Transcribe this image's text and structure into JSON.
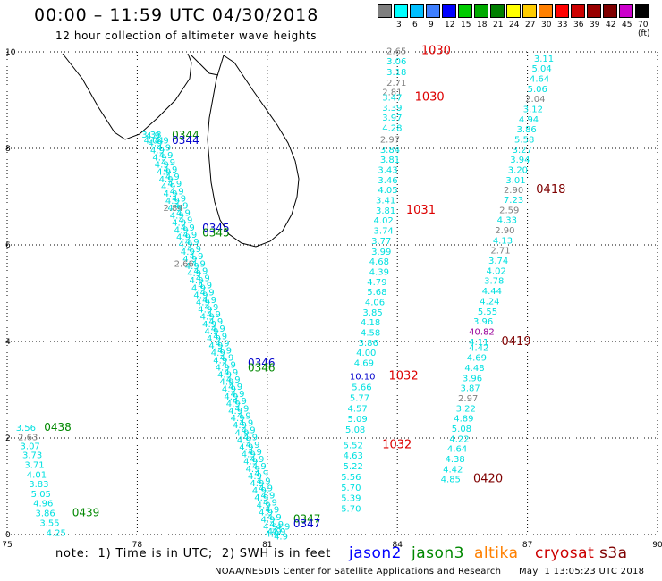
{
  "title": "00:00 – 11:59 UTC 04/30/2018",
  "subtitle": "12 hour collection of altimeter wave heights",
  "color_scale": {
    "labels": [
      "",
      "3",
      "6",
      "9",
      "12",
      "15",
      "18",
      "21",
      "24",
      "27",
      "30",
      "33",
      "36",
      "39",
      "42",
      "45",
      "70 (ft)"
    ],
    "colors": [
      "#7f7f7f",
      "#00ffff",
      "#00bfff",
      "#3f7fff",
      "#0000ff",
      "#00cc00",
      "#00aa00",
      "#007f00",
      "#ffff00",
      "#ffcc00",
      "#ff8000",
      "#ff0000",
      "#cc0000",
      "#990000",
      "#7f0000",
      "#cc00cc",
      "#000000"
    ]
  },
  "footer": {
    "note": "note:  1) Time is in UTC;  2) SWH is in feet",
    "legend": [
      {
        "label": "jason2",
        "color": "#0000ff"
      },
      {
        "label": "jason3",
        "color": "#008800"
      },
      {
        "label": "altika",
        "color": "#ff8000"
      },
      {
        "label": "cryosat",
        "color": "#cc0000"
      },
      {
        "label": "s3a",
        "color": "#7f0000"
      }
    ],
    "credit": "NOAA/NESDIS Center for Satellite Applications and Research",
    "timestamp": "May  1 13:05:23 UTC 2018"
  },
  "colors": {
    "cyan": "#00e0e0",
    "gray": "#7f7f7f",
    "blue": "#0000cc",
    "green": "#008800",
    "red": "#dd0000",
    "maroon": "#7f0000",
    "purple": "#990099"
  },
  "chart_data": {
    "type": "scatter",
    "xlim": [
      75,
      90
    ],
    "ylim": [
      0,
      10
    ],
    "xticks": [
      75,
      78,
      81,
      84,
      87,
      90
    ],
    "yticks": [
      0,
      2,
      4,
      6,
      8,
      10
    ],
    "grid": true,
    "series": [
      {
        "color": "cyan",
        "x": [
          78.2,
          78.25,
          78.3,
          78.35,
          78.4,
          78.45,
          78.5,
          78.55,
          78.6,
          78.65,
          78.7,
          78.75,
          78.8,
          78.85,
          78.9,
          78.95,
          79.0,
          79.05,
          79.1,
          79.15,
          79.2,
          79.25,
          79.3,
          79.35,
          79.4,
          79.45,
          79.5,
          79.55,
          79.6,
          79.65,
          79.7,
          79.75,
          79.8,
          79.85,
          79.9,
          79.95,
          80.0,
          80.05,
          80.1,
          80.15,
          80.2,
          80.25,
          80.3,
          80.35,
          80.4,
          80.45,
          80.5,
          80.55,
          80.6,
          80.65,
          80.7,
          80.75,
          80.8,
          80.85,
          80.9,
          80.95,
          81.0
        ],
        "y": [
          8.2,
          8.05,
          7.9,
          7.75,
          7.6,
          7.45,
          7.3,
          7.15,
          7.0,
          6.85,
          6.7,
          6.55,
          6.4,
          6.25,
          6.1,
          5.95,
          5.8,
          5.65,
          5.5,
          5.35,
          5.2,
          5.05,
          4.9,
          4.75,
          4.6,
          4.45,
          4.3,
          4.15,
          4.0,
          3.85,
          3.7,
          3.55,
          3.4,
          3.25,
          3.1,
          2.95,
          2.8,
          2.65,
          2.5,
          2.35,
          2.2,
          2.05,
          1.9,
          1.75,
          1.6,
          1.45,
          1.3,
          1.15,
          1.0,
          0.85,
          0.7,
          0.55,
          0.4,
          0.25,
          0.1,
          -0.05,
          0.0
        ]
      },
      {
        "color": "cyan",
        "x": [
          78.4,
          78.45,
          78.5,
          78.55,
          78.6,
          78.65,
          78.7,
          78.75,
          78.8,
          78.85,
          78.9,
          78.95,
          79.0,
          79.05,
          79.1,
          79.15,
          79.2,
          79.25,
          79.3,
          79.35,
          79.4,
          79.45,
          79.5,
          79.55,
          79.6,
          79.65,
          79.7,
          79.75,
          79.8,
          79.85,
          79.9,
          79.95,
          80.0,
          80.05,
          80.1,
          80.15,
          80.2,
          80.25,
          80.3,
          80.35,
          80.4,
          80.45,
          80.5,
          80.55,
          80.6,
          80.65,
          80.7,
          80.75,
          80.8,
          80.85,
          80.9,
          80.95,
          81.0,
          81.05,
          81.1,
          81.15,
          81.2
        ],
        "y": [
          8.1,
          7.95,
          7.8,
          7.65,
          7.5,
          7.35,
          7.2,
          7.05,
          6.9,
          6.75,
          6.6,
          6.45,
          6.3,
          6.15,
          6.0,
          5.85,
          5.7,
          5.55,
          5.4,
          5.25,
          5.1,
          4.95,
          4.8,
          4.65,
          4.5,
          4.35,
          4.2,
          4.05,
          3.9,
          3.75,
          3.6,
          3.45,
          3.3,
          3.15,
          3.0,
          2.85,
          2.7,
          2.55,
          2.4,
          2.25,
          2.1,
          1.95,
          1.8,
          1.65,
          1.5,
          1.35,
          1.2,
          1.05,
          0.9,
          0.75,
          0.6,
          0.45,
          0.3,
          0.15,
          0.0,
          -0.1,
          0.1
        ]
      }
    ],
    "labels": [
      {
        "text": "3.38",
        "x": 78.1,
        "y": 8.22,
        "color": "cyan"
      },
      {
        "text": "4.04",
        "x": 78.15,
        "y": 8.1,
        "color": "cyan"
      },
      {
        "text": "0344",
        "x": 78.8,
        "y": 8.2,
        "color": "green",
        "size": 12
      },
      {
        "text": "0344",
        "x": 78.8,
        "y": 8.09,
        "color": "blue",
        "size": 12
      },
      {
        "text": "2.84",
        "x": 78.6,
        "y": 6.7,
        "color": "gray"
      },
      {
        "text": "0345",
        "x": 79.5,
        "y": 6.28,
        "color": "blue",
        "size": 12
      },
      {
        "text": "0345",
        "x": 79.5,
        "y": 6.18,
        "color": "green",
        "size": 12
      },
      {
        "text": "2.66",
        "x": 78.85,
        "y": 5.55,
        "color": "gray"
      },
      {
        "text": "0346",
        "x": 80.55,
        "y": 3.48,
        "color": "blue",
        "size": 12
      },
      {
        "text": "0346",
        "x": 80.55,
        "y": 3.38,
        "color": "green",
        "size": 12
      },
      {
        "text": "0347",
        "x": 81.6,
        "y": 0.25,
        "color": "green",
        "size": 12
      },
      {
        "text": "0347",
        "x": 81.6,
        "y": 0.15,
        "color": "blue",
        "size": 12
      },
      {
        "text": "3.56",
        "x": 75.2,
        "y": 2.15,
        "color": "cyan"
      },
      {
        "text": "0438",
        "x": 75.85,
        "y": 2.15,
        "color": "green",
        "size": 12
      },
      {
        "text": "2.63",
        "x": 75.25,
        "y": 1.95,
        "color": "gray"
      },
      {
        "text": "3.07",
        "x": 75.3,
        "y": 1.77,
        "color": "cyan"
      },
      {
        "text": "3.73",
        "x": 75.35,
        "y": 1.58,
        "color": "cyan"
      },
      {
        "text": "3.71",
        "x": 75.4,
        "y": 1.38,
        "color": "cyan"
      },
      {
        "text": "4.01",
        "x": 75.45,
        "y": 1.18,
        "color": "cyan"
      },
      {
        "text": "3.83",
        "x": 75.5,
        "y": 0.98,
        "color": "cyan"
      },
      {
        "text": "5.05",
        "x": 75.55,
        "y": 0.78,
        "color": "cyan"
      },
      {
        "text": "4.96",
        "x": 75.6,
        "y": 0.58,
        "color": "cyan"
      },
      {
        "text": "3.86",
        "x": 75.65,
        "y": 0.38,
        "color": "cyan"
      },
      {
        "text": "0439",
        "x": 76.5,
        "y": 0.38,
        "color": "green",
        "size": 12
      },
      {
        "text": "3.55",
        "x": 75.75,
        "y": 0.18,
        "color": "cyan"
      },
      {
        "text": "4.25",
        "x": 75.9,
        "y": -0.03,
        "color": "cyan"
      },
      {
        "text": "2.65",
        "x": 83.75,
        "y": 9.95,
        "color": "gray"
      },
      {
        "text": "1030",
        "x": 84.55,
        "y": 9.95,
        "color": "red",
        "size": 13
      },
      {
        "text": "3.06",
        "x": 83.75,
        "y": 9.74,
        "color": "cyan"
      },
      {
        "text": "3.18",
        "x": 83.75,
        "y": 9.52,
        "color": "cyan"
      },
      {
        "text": "2.71",
        "x": 83.75,
        "y": 9.3,
        "color": "gray"
      },
      {
        "text": "2.81",
        "x": 83.65,
        "y": 9.1,
        "color": "gray"
      },
      {
        "text": "3.47",
        "x": 83.65,
        "y": 8.99,
        "color": "cyan"
      },
      {
        "text": "1030",
        "x": 84.4,
        "y": 8.99,
        "color": "red",
        "size": 13
      },
      {
        "text": "3.39",
        "x": 83.65,
        "y": 8.78,
        "color": "cyan"
      },
      {
        "text": "3.97",
        "x": 83.65,
        "y": 8.57,
        "color": "cyan"
      },
      {
        "text": "4.28",
        "x": 83.65,
        "y": 8.36,
        "color": "cyan"
      },
      {
        "text": "2.97",
        "x": 83.6,
        "y": 8.12,
        "color": "gray"
      },
      {
        "text": "3.84",
        "x": 83.6,
        "y": 7.91,
        "color": "cyan"
      },
      {
        "text": "3.81",
        "x": 83.6,
        "y": 7.7,
        "color": "cyan"
      },
      {
        "text": "3.43",
        "x": 83.55,
        "y": 7.49,
        "color": "cyan"
      },
      {
        "text": "3.46",
        "x": 83.55,
        "y": 7.28,
        "color": "cyan"
      },
      {
        "text": "4.05",
        "x": 83.55,
        "y": 7.07,
        "color": "cyan"
      },
      {
        "text": "3.41",
        "x": 83.5,
        "y": 6.86,
        "color": "cyan"
      },
      {
        "text": "3.81",
        "x": 83.5,
        "y": 6.65,
        "color": "cyan"
      },
      {
        "text": "1031",
        "x": 84.2,
        "y": 6.65,
        "color": "red",
        "size": 13
      },
      {
        "text": "4.02",
        "x": 83.45,
        "y": 6.44,
        "color": "cyan"
      },
      {
        "text": "3.74",
        "x": 83.45,
        "y": 6.23,
        "color": "cyan"
      },
      {
        "text": "3.77",
        "x": 83.4,
        "y": 6.02,
        "color": "cyan"
      },
      {
        "text": "3.99",
        "x": 83.4,
        "y": 5.8,
        "color": "cyan"
      },
      {
        "text": "4.68",
        "x": 83.35,
        "y": 5.59,
        "color": "cyan"
      },
      {
        "text": "4.39",
        "x": 83.35,
        "y": 5.38,
        "color": "cyan"
      },
      {
        "text": "4.79",
        "x": 83.3,
        "y": 5.17,
        "color": "cyan"
      },
      {
        "text": "5.68",
        "x": 83.3,
        "y": 4.96,
        "color": "cyan"
      },
      {
        "text": "4.06",
        "x": 83.25,
        "y": 4.75,
        "color": "cyan"
      },
      {
        "text": "3.85",
        "x": 83.2,
        "y": 4.54,
        "color": "cyan"
      },
      {
        "text": "4.18",
        "x": 83.15,
        "y": 4.33,
        "color": "cyan"
      },
      {
        "text": "4.58",
        "x": 83.15,
        "y": 4.12,
        "color": "cyan"
      },
      {
        "text": "3.86",
        "x": 83.1,
        "y": 3.91,
        "color": "cyan"
      },
      {
        "text": "4.00",
        "x": 83.05,
        "y": 3.7,
        "color": "cyan"
      },
      {
        "text": "4.69",
        "x": 83.0,
        "y": 3.49,
        "color": "cyan"
      },
      {
        "text": "10.10",
        "x": 82.9,
        "y": 3.21,
        "color": "blue"
      },
      {
        "text": "1032",
        "x": 83.8,
        "y": 3.21,
        "color": "red",
        "size": 13
      },
      {
        "text": "5.66",
        "x": 82.95,
        "y": 2.99,
        "color": "cyan"
      },
      {
        "text": "5.77",
        "x": 82.9,
        "y": 2.77,
        "color": "cyan"
      },
      {
        "text": "4.57",
        "x": 82.85,
        "y": 2.55,
        "color": "cyan"
      },
      {
        "text": "5.09",
        "x": 82.85,
        "y": 2.33,
        "color": "cyan"
      },
      {
        "text": "5.08",
        "x": 82.8,
        "y": 2.11,
        "color": "cyan"
      },
      {
        "text": "5.52",
        "x": 82.75,
        "y": 1.79,
        "color": "cyan"
      },
      {
        "text": "1032",
        "x": 83.65,
        "y": 1.79,
        "color": "red",
        "size": 13
      },
      {
        "text": "4.63",
        "x": 82.75,
        "y": 1.57,
        "color": "cyan"
      },
      {
        "text": "5.22",
        "x": 82.75,
        "y": 1.35,
        "color": "cyan"
      },
      {
        "text": "5.56",
        "x": 82.7,
        "y": 1.13,
        "color": "cyan"
      },
      {
        "text": "5.70",
        "x": 82.7,
        "y": 0.91,
        "color": "cyan"
      },
      {
        "text": "5.39",
        "x": 82.7,
        "y": 0.69,
        "color": "cyan"
      },
      {
        "text": "5.70",
        "x": 82.7,
        "y": 0.47,
        "color": "cyan"
      },
      {
        "text": "3.11",
        "x": 87.15,
        "y": 9.8,
        "color": "cyan"
      },
      {
        "text": "5.04",
        "x": 87.1,
        "y": 9.59,
        "color": "cyan"
      },
      {
        "text": "4.64",
        "x": 87.05,
        "y": 9.38,
        "color": "cyan"
      },
      {
        "text": "5.06",
        "x": 87.0,
        "y": 9.17,
        "color": "cyan"
      },
      {
        "text": "2.04",
        "x": 86.95,
        "y": 8.96,
        "color": "gray"
      },
      {
        "text": "3.12",
        "x": 86.9,
        "y": 8.75,
        "color": "cyan"
      },
      {
        "text": "4.94",
        "x": 86.8,
        "y": 8.54,
        "color": "cyan"
      },
      {
        "text": "3.86",
        "x": 86.75,
        "y": 8.33,
        "color": "cyan"
      },
      {
        "text": "5.58",
        "x": 86.7,
        "y": 8.12,
        "color": "cyan"
      },
      {
        "text": "3.27",
        "x": 86.65,
        "y": 7.91,
        "color": "cyan"
      },
      {
        "text": "3.94",
        "x": 86.6,
        "y": 7.7,
        "color": "cyan"
      },
      {
        "text": "3.20",
        "x": 86.55,
        "y": 7.49,
        "color": "cyan"
      },
      {
        "text": "3.01",
        "x": 86.5,
        "y": 7.28,
        "color": "cyan"
      },
      {
        "text": "2.90",
        "x": 86.45,
        "y": 7.07,
        "color": "gray"
      },
      {
        "text": "0418",
        "x": 87.2,
        "y": 7.07,
        "color": "maroon",
        "size": 13
      },
      {
        "text": "7.23",
        "x": 86.45,
        "y": 6.87,
        "color": "cyan"
      },
      {
        "text": "2.59",
        "x": 86.35,
        "y": 6.66,
        "color": "gray"
      },
      {
        "text": "4.33",
        "x": 86.3,
        "y": 6.45,
        "color": "cyan"
      },
      {
        "text": "2.90",
        "x": 86.25,
        "y": 6.24,
        "color": "gray"
      },
      {
        "text": "4.13",
        "x": 86.2,
        "y": 6.03,
        "color": "cyan"
      },
      {
        "text": "2.71",
        "x": 86.15,
        "y": 5.82,
        "color": "gray"
      },
      {
        "text": "3.74",
        "x": 86.1,
        "y": 5.61,
        "color": "cyan"
      },
      {
        "text": "4.02",
        "x": 86.05,
        "y": 5.4,
        "color": "cyan"
      },
      {
        "text": "3.78",
        "x": 86.0,
        "y": 5.19,
        "color": "cyan"
      },
      {
        "text": "4.44",
        "x": 85.95,
        "y": 4.98,
        "color": "cyan"
      },
      {
        "text": "4.24",
        "x": 85.9,
        "y": 4.77,
        "color": "cyan"
      },
      {
        "text": "5.55",
        "x": 85.85,
        "y": 4.56,
        "color": "cyan"
      },
      {
        "text": "3.96",
        "x": 85.75,
        "y": 4.35,
        "color": "cyan"
      },
      {
        "text": "40.82",
        "x": 85.65,
        "y": 4.14,
        "color": "purple"
      },
      {
        "text": "0419",
        "x": 86.4,
        "y": 3.93,
        "color": "maroon",
        "size": 13
      },
      {
        "text": "4.11",
        "x": 85.65,
        "y": 3.93,
        "color": "cyan"
      },
      {
        "text": "4.42",
        "x": 85.65,
        "y": 3.81,
        "color": "cyan"
      },
      {
        "text": "4.69",
        "x": 85.6,
        "y": 3.6,
        "color": "cyan"
      },
      {
        "text": "4.48",
        "x": 85.55,
        "y": 3.39,
        "color": "cyan"
      },
      {
        "text": "3.96",
        "x": 85.5,
        "y": 3.18,
        "color": "cyan"
      },
      {
        "text": "3.87",
        "x": 85.45,
        "y": 2.97,
        "color": "cyan"
      },
      {
        "text": "2.97",
        "x": 85.4,
        "y": 2.76,
        "color": "gray"
      },
      {
        "text": "3.22",
        "x": 85.35,
        "y": 2.55,
        "color": "cyan"
      },
      {
        "text": "4.89",
        "x": 85.3,
        "y": 2.34,
        "color": "cyan"
      },
      {
        "text": "5.08",
        "x": 85.25,
        "y": 2.13,
        "color": "cyan"
      },
      {
        "text": "4.22",
        "x": 85.2,
        "y": 1.92,
        "color": "cyan"
      },
      {
        "text": "4.64",
        "x": 85.15,
        "y": 1.71,
        "color": "cyan"
      },
      {
        "text": "4.38",
        "x": 85.1,
        "y": 1.5,
        "color": "cyan"
      },
      {
        "text": "4.42",
        "x": 85.05,
        "y": 1.29,
        "color": "cyan"
      },
      {
        "text": "4.85",
        "x": 85.0,
        "y": 1.08,
        "color": "cyan"
      },
      {
        "text": "0420",
        "x": 85.75,
        "y": 1.08,
        "color": "maroon",
        "size": 13
      }
    ]
  }
}
